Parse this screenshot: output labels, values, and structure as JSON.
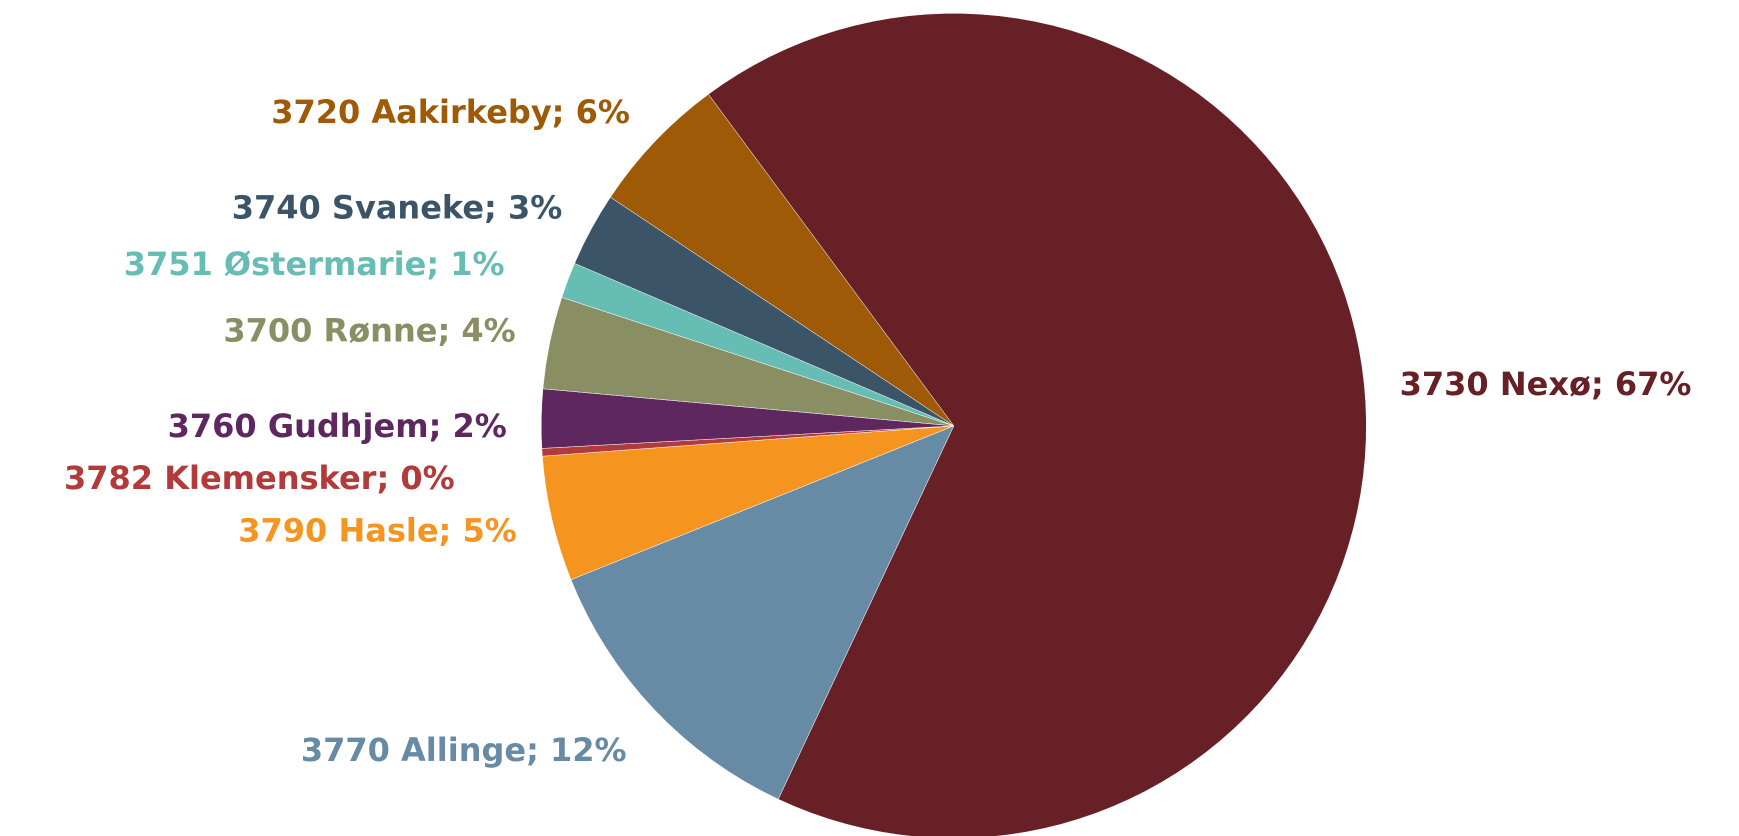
{
  "chart_data": {
    "type": "pie",
    "labels": [
      "3730 Nexø; 67%",
      "3770 Allinge; 12%",
      "3790 Hasle; 5%",
      "3782 Klemensker; 0%",
      "3760 Gudhjem; 2%",
      "3700 Rønne; 4%",
      "3751 Østermarie; 1%",
      "3740 Svaneke; 3%",
      "3720 Aakirkeby; 6%"
    ],
    "values": [
      67,
      11.9,
      4.9,
      0.3,
      2.3,
      3.6,
      1.4,
      2.9,
      5.5
    ],
    "colors": [
      "#662026",
      "#678ba5",
      "#f5951f",
      "#b23a3a",
      "#5e2760",
      "#8a8e63",
      "#66bdb4",
      "#3c5467",
      "#9e5a06"
    ]
  }
}
